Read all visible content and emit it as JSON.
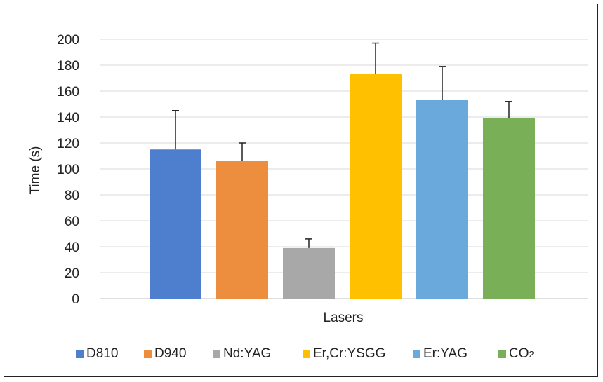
{
  "chart_data": {
    "type": "bar",
    "categories": [
      "D810",
      "D940",
      "Nd:YAG",
      "Er,Cr:YSGG",
      "Er:YAG",
      "CO2"
    ],
    "values": [
      115,
      106,
      39,
      173,
      153,
      139
    ],
    "errors": [
      30,
      14,
      7,
      24,
      26,
      13
    ],
    "colors": [
      "#4e7fcf",
      "#ed8d3e",
      "#a8a8a8",
      "#ffc000",
      "#6aa9dc",
      "#79b057"
    ],
    "xlabel": "Lasers",
    "ylabel": "Time (s)",
    "ylim": [
      0,
      200
    ],
    "yticks": [
      "0",
      "20",
      "40",
      "60",
      "80",
      "100",
      "120",
      "140",
      "160",
      "180",
      "200"
    ],
    "grid": true,
    "legend_position": "bottom",
    "legend": [
      {
        "label": "D810",
        "sub": ""
      },
      {
        "label": "D940",
        "sub": ""
      },
      {
        "label": "Nd:YAG",
        "sub": ""
      },
      {
        "label": "Er,Cr:YSGG",
        "sub": ""
      },
      {
        "label": "Er:YAG",
        "sub": ""
      },
      {
        "label": "CO",
        "sub": "2"
      }
    ]
  }
}
